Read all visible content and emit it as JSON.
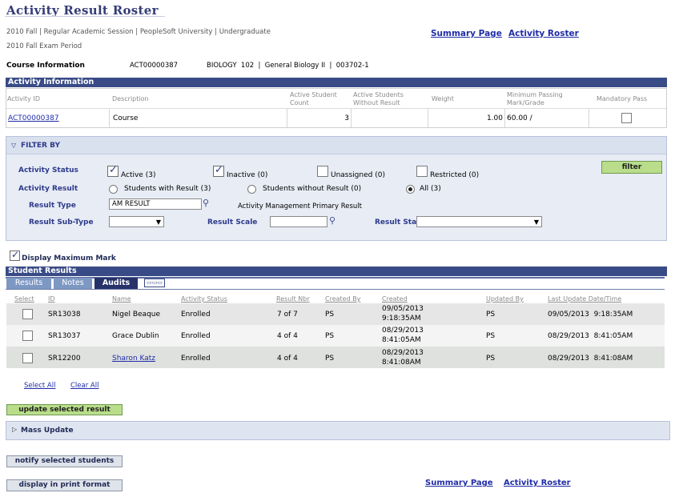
{
  "page_title": "Activity Result Roster",
  "context": {
    "line1": "2010 Fall | Regular Academic Session | PeopleSoft University | Undergraduate",
    "line2": "2010 Fall Exam Period"
  },
  "top_links": {
    "summary": "Summary Page",
    "roster": "Activity Roster"
  },
  "course_info": {
    "label": "Course Information",
    "activity_code": "ACT00000387",
    "course": "BIOLOGY  102  |  General Biology II  |  003702-1"
  },
  "activity_info": {
    "header": "Activity Information",
    "columns": {
      "id": "Activity ID",
      "description": "Description",
      "active_count": "Active Student Count",
      "without_result": "Active Students Without Result",
      "weight": "Weight",
      "min_pass": "Minimum Passing Mark/Grade",
      "mandatory": "Mandatory Pass"
    },
    "row": {
      "id": "ACT00000387",
      "description": "Course",
      "active_count": "3",
      "without_result": "",
      "weight": "1.00",
      "min_pass": "60.00 /"
    }
  },
  "filter": {
    "header": "FILTER BY",
    "activity_status_label": "Activity Status",
    "status_options": [
      {
        "label": "Active (3)",
        "checked": true
      },
      {
        "label": "Inactive (0)",
        "checked": true
      },
      {
        "label": "Unassigned (0)",
        "checked": false
      },
      {
        "label": "Restricted (0)",
        "checked": false
      }
    ],
    "activity_result_label": "Activity Result",
    "result_options": [
      {
        "label": "Students with Result (3)",
        "selected": false
      },
      {
        "label": "Students without Result (0)",
        "selected": false
      },
      {
        "label": "All (3)",
        "selected": true
      }
    ],
    "result_type_label": "Result Type",
    "result_type_value": "AM RESULT",
    "result_type_desc": "Activity Management Primary Result",
    "result_subtype_label": "Result Sub-Type",
    "result_scale_label": "Result Scale",
    "result_status_label": "Result Status",
    "filter_button": "filter"
  },
  "display_max_mark": {
    "label": "Display Maximum Mark",
    "checked": true
  },
  "student_results": {
    "header": "Student Results",
    "tabs": [
      "Results",
      "Notes",
      "Audits"
    ],
    "active_tab": "Audits",
    "columns": [
      "Select",
      "ID",
      "Name",
      "Activity Status",
      "Result Nbr",
      "Created By",
      "Created",
      "Updated By",
      "Last Update Date/Time"
    ],
    "rows": [
      {
        "id": "SR13038",
        "name": "Nigel Beaque",
        "status": "Enrolled",
        "result_nbr": "7 of 7",
        "created_by": "PS",
        "created_date": "09/05/2013",
        "created_time": "9:18:35AM",
        "updated_by": "PS",
        "last_update": "09/05/2013  9:18:35AM"
      },
      {
        "id": "SR13037",
        "name": "Grace Dublin",
        "status": "Enrolled",
        "result_nbr": "4 of 4",
        "created_by": "PS",
        "created_date": "08/29/2013",
        "created_time": "8:41:05AM",
        "updated_by": "PS",
        "last_update": "08/29/2013  8:41:05AM"
      },
      {
        "id": "SR12200",
        "name": "Sharon Katz",
        "status": "Enrolled",
        "result_nbr": "4 of 4",
        "created_by": "PS",
        "created_date": "08/29/2013",
        "created_time": "8:41:08AM",
        "updated_by": "PS",
        "last_update": "08/29/2013  8:41:08AM"
      }
    ]
  },
  "select_all": "Select All",
  "clear_all": "Clear All",
  "update_button": "update selected result",
  "mass_update": "Mass Update",
  "notify_button": "notify selected students",
  "print_button": "display in print format",
  "bottom_links": {
    "summary": "Summary Page",
    "roster": "Activity Roster"
  }
}
